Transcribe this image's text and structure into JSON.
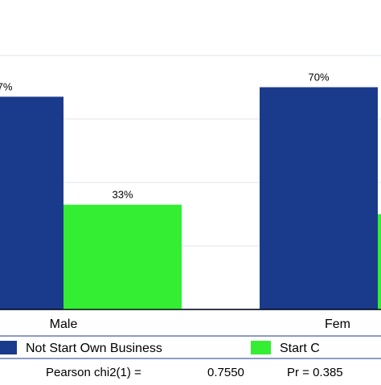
{
  "chart_data": {
    "type": "bar",
    "categories": [
      "Male",
      "Female"
    ],
    "categories_visible": [
      "Male",
      "Fem"
    ],
    "series": [
      {
        "name": "Not Start Own Business",
        "legend_visible": "Not Start Own Business",
        "values": [
          67,
          70
        ],
        "labels_visible": [
          "7%",
          "70%"
        ],
        "color": "#1a3a8c"
      },
      {
        "name": "Start Own Business",
        "legend_visible": "Start C",
        "values": [
          33,
          30
        ],
        "labels_visible": [
          "33%",
          ""
        ],
        "color": "#33ee33"
      }
    ],
    "ylim": [
      0,
      100
    ],
    "grid": true,
    "legend_placement": "bottom",
    "footnote": {
      "stat_label": "Pearson chi2(1) =",
      "stat_value": "0.7550",
      "p_label": "Pr = 0.385"
    },
    "colors": {
      "frame": "#1a3a8c",
      "grid": "#dfe6ee",
      "axis": "#000000"
    }
  }
}
